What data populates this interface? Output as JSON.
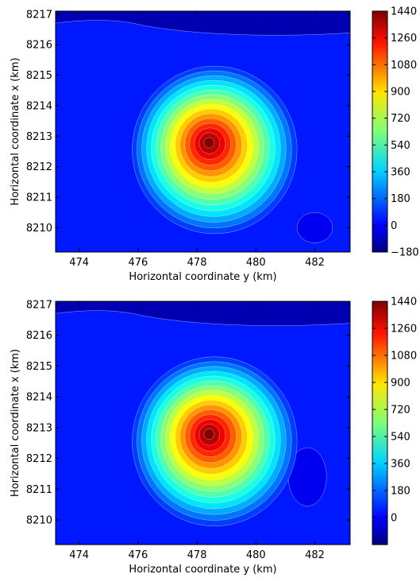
{
  "chart_data": [
    {
      "type": "heatmap",
      "subtype": "filled-contour",
      "xlabel": "Horizontal coordinate y (km)",
      "ylabel": "Horizontal coordinate x (km)",
      "xlim": [
        473.2,
        483.2
      ],
      "ylim": [
        8209.2,
        8217.1
      ],
      "xticks": [
        474,
        476,
        478,
        480,
        482
      ],
      "yticks": [
        8210,
        8211,
        8212,
        8213,
        8214,
        8215,
        8216,
        8217
      ],
      "peak": {
        "x": 478.4,
        "y": 8212.8,
        "value": 1440
      },
      "colorbar": {
        "ticks": [
          "−180",
          "0",
          "180",
          "360",
          "540",
          "720",
          "900",
          "1080",
          "1260",
          "1440"
        ],
        "min": -180,
        "max": 1440,
        "colormap": "jet"
      },
      "features": [
        "low region along top edge",
        "low patch near x 482, y 8210"
      ]
    },
    {
      "type": "heatmap",
      "subtype": "filled-contour",
      "xlabel": "Horizontal coordinate y (km)",
      "ylabel": "Horizontal coordinate x (km)",
      "xlim": [
        473.2,
        483.2
      ],
      "ylim": [
        8209.2,
        8217.1
      ],
      "xticks": [
        474,
        476,
        478,
        480,
        482
      ],
      "yticks": [
        8210,
        8211,
        8212,
        8213,
        8214,
        8215,
        8216,
        8217
      ],
      "peak": {
        "x": 478.4,
        "y": 8212.8,
        "value": 1440
      },
      "colorbar": {
        "ticks": [
          "0",
          "180",
          "360",
          "540",
          "720",
          "900",
          "1080",
          "1260",
          "1440"
        ],
        "min": -180,
        "max": 1440,
        "colormap": "jet"
      },
      "features": [
        "low region along top edge",
        "closed low near x 481.8, y 8211.4"
      ]
    }
  ]
}
